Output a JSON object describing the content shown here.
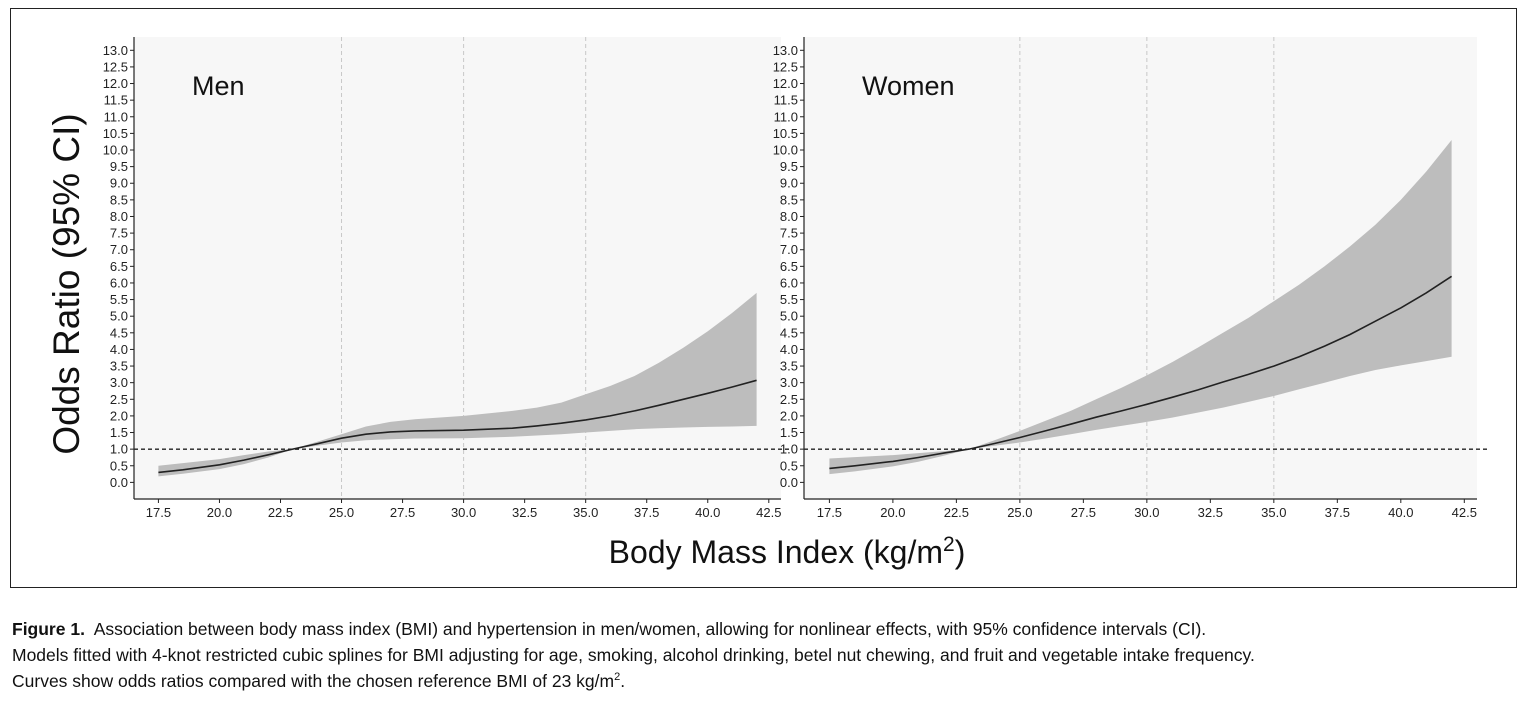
{
  "figure": {
    "ylabel": "Odds Ratio (95% CI)",
    "xlabel_main": "Body Mass Index (kg/m",
    "xlabel_sup": "2",
    "xlabel_end": ")"
  },
  "caption": {
    "label": "Figure 1.",
    "line1": "Association between body mass index (BMI) and hypertension in men/women, allowing for nonlinear effects, with 95% confidence intervals (CI).",
    "line2": "Models fitted with 4-knot restricted cubic splines for BMI adjusting for age, smoking, alcohol drinking, betel nut chewing, and fruit and vegetable intake frequency.",
    "line3_main": "Curves show odds ratios compared with the chosen reference BMI of 23 kg/m",
    "line3_sup": "2",
    "line3_end": "."
  },
  "colors": {
    "panel_bg": "#f7f7f7",
    "ci_band": "#bdbdbd",
    "curve": "#222222",
    "reference_line": "#222222",
    "gridline": "#c8c8c8"
  },
  "chart_data": [
    {
      "type": "line",
      "title": "Men",
      "xlim": [
        16.5,
        43.0
      ],
      "ylim": [
        -0.5,
        13.4
      ],
      "x_ticks": [
        17.5,
        20.0,
        22.5,
        25.0,
        27.5,
        30.0,
        32.5,
        35.0,
        37.5,
        40.0,
        42.5
      ],
      "x_tick_labels": [
        "17.5",
        "20.0",
        "22.5",
        "25.0",
        "27.5",
        "30.0",
        "32.5",
        "35.0",
        "37.5",
        "40.0",
        "42.5"
      ],
      "y_ticks": [
        0,
        0.5,
        1,
        1.5,
        2,
        2.5,
        3,
        3.5,
        4,
        4.5,
        5,
        5.5,
        6,
        6.5,
        7,
        7.5,
        8,
        8.5,
        9,
        9.5,
        10,
        10.5,
        11,
        11.5,
        12,
        12.5,
        13
      ],
      "y_tick_labels": [
        "0.0",
        "0.5",
        "1.0",
        "1.5",
        "2.0",
        "2.5",
        "3.0",
        "3.5",
        "4.0",
        "4.5",
        "5.0",
        "5.5",
        "6.0",
        "6.5",
        "7.0",
        "7.5",
        "8.0",
        "8.5",
        "9.0",
        "9.5",
        "10.0",
        "10.5",
        "11.0",
        "11.5",
        "12.0",
        "12.5",
        "13.0"
      ],
      "vertical_gridlines_at": [
        25.0,
        30.0,
        35.0
      ],
      "reference_line_y": 1.0,
      "series": [
        {
          "x": [
            17.5,
            18.5,
            20.0,
            21.0,
            22.0,
            23.0,
            24.0,
            25.0,
            26.0,
            27.0,
            28.0,
            30.0,
            32.0,
            33.0,
            34.0,
            35.0,
            36.0,
            37.0,
            38.0,
            39.0,
            40.0,
            41.0,
            42.0
          ],
          "y": [
            0.3,
            0.38,
            0.53,
            0.67,
            0.83,
            1.0,
            1.16,
            1.33,
            1.45,
            1.52,
            1.55,
            1.57,
            1.63,
            1.7,
            1.78,
            1.88,
            2.0,
            2.15,
            2.32,
            2.5,
            2.68,
            2.87,
            3.07
          ],
          "ci_lower": [
            0.18,
            0.26,
            0.4,
            0.55,
            0.75,
            1.0,
            1.1,
            1.2,
            1.27,
            1.3,
            1.32,
            1.33,
            1.37,
            1.41,
            1.45,
            1.5,
            1.55,
            1.6,
            1.63,
            1.65,
            1.67,
            1.68,
            1.7
          ],
          "ci_upper": [
            0.5,
            0.58,
            0.7,
            0.82,
            0.93,
            1.0,
            1.22,
            1.45,
            1.68,
            1.82,
            1.9,
            2.0,
            2.15,
            2.25,
            2.4,
            2.65,
            2.9,
            3.2,
            3.6,
            4.05,
            4.55,
            5.1,
            5.7
          ]
        }
      ]
    },
    {
      "type": "line",
      "title": "Women",
      "xlim": [
        16.5,
        43.0
      ],
      "ylim": [
        -0.5,
        13.4
      ],
      "x_ticks": [
        17.5,
        20.0,
        22.5,
        25.0,
        27.5,
        30.0,
        32.5,
        35.0,
        37.5,
        40.0,
        42.5
      ],
      "x_tick_labels": [
        "17.5",
        "20.0",
        "22.5",
        "25.0",
        "27.5",
        "30.0",
        "32.5",
        "35.0",
        "37.5",
        "40.0",
        "42.5"
      ],
      "y_ticks": [
        0,
        0.5,
        1,
        1.5,
        2,
        2.5,
        3,
        3.5,
        4,
        4.5,
        5,
        5.5,
        6,
        6.5,
        7,
        7.5,
        8,
        8.5,
        9,
        9.5,
        10,
        10.5,
        11,
        11.5,
        12,
        12.5,
        13
      ],
      "y_tick_labels": [
        "0.0",
        "0.5",
        "1.0",
        "1.5",
        "2.0",
        "2.5",
        "3.0",
        "3.5",
        "4.0",
        "4.5",
        "5.0",
        "5.5",
        "6.0",
        "6.5",
        "7.0",
        "7.5",
        "8.0",
        "8.5",
        "9.0",
        "9.5",
        "10.0",
        "10.5",
        "11.0",
        "11.5",
        "12.0",
        "12.5",
        "13.0"
      ],
      "vertical_gridlines_at": [
        25.0,
        30.0,
        35.0
      ],
      "reference_line_y": 1.0,
      "series": [
        {
          "x": [
            17.5,
            18.5,
            20.0,
            21.0,
            22.0,
            23.0,
            24.0,
            25.0,
            26.0,
            27.0,
            28.0,
            29.0,
            30.0,
            31.0,
            32.0,
            33.0,
            34.0,
            35.0,
            36.0,
            37.0,
            38.0,
            39.0,
            40.0,
            41.0,
            42.0
          ],
          "y": [
            0.42,
            0.5,
            0.63,
            0.75,
            0.88,
            1.0,
            1.17,
            1.35,
            1.55,
            1.75,
            1.96,
            2.15,
            2.35,
            2.56,
            2.78,
            3.02,
            3.25,
            3.5,
            3.78,
            4.1,
            4.45,
            4.85,
            5.25,
            5.7,
            6.2
          ],
          "ci_lower": [
            0.25,
            0.33,
            0.48,
            0.62,
            0.8,
            1.0,
            1.1,
            1.2,
            1.32,
            1.45,
            1.58,
            1.7,
            1.82,
            1.95,
            2.1,
            2.25,
            2.42,
            2.6,
            2.8,
            3.0,
            3.2,
            3.38,
            3.52,
            3.65,
            3.78
          ],
          "ci_upper": [
            0.72,
            0.76,
            0.82,
            0.88,
            0.94,
            1.0,
            1.27,
            1.55,
            1.85,
            2.15,
            2.5,
            2.85,
            3.22,
            3.62,
            4.05,
            4.5,
            4.95,
            5.45,
            5.95,
            6.5,
            7.1,
            7.75,
            8.5,
            9.35,
            10.3
          ]
        }
      ]
    }
  ]
}
